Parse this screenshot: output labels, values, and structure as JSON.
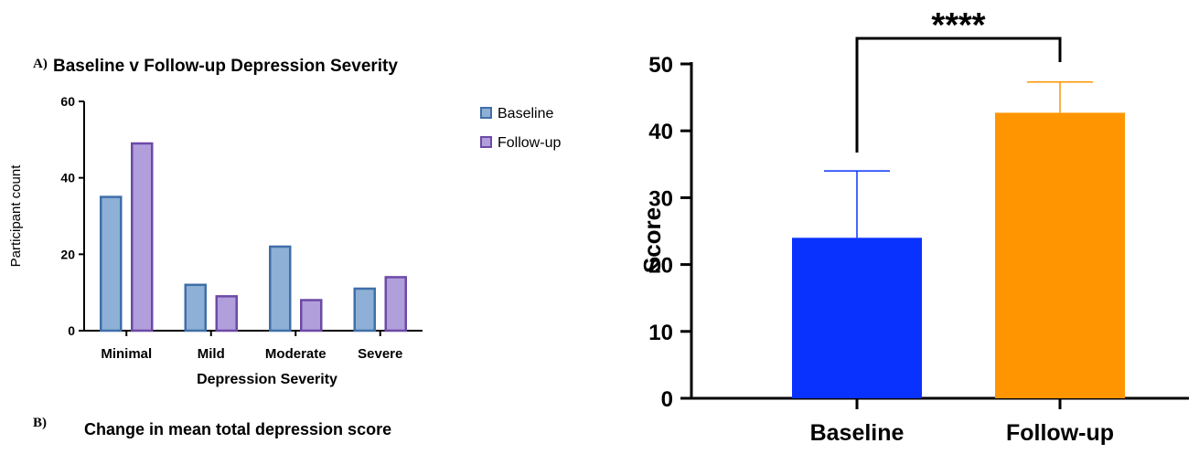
{
  "figure": {
    "panel_a_label": "A)",
    "panel_b_label": "B)",
    "panel_b_title": "Change in mean total depression score"
  },
  "chart_data": [
    {
      "type": "bar",
      "title": "Baseline v Follow-up Depression Severity",
      "xlabel": "Depression Severity",
      "ylabel": "Participant count",
      "categories": [
        "Minimal",
        "Mild",
        "Moderate",
        "Severe"
      ],
      "series": [
        {
          "name": "Baseline",
          "values": [
            35,
            12,
            22,
            11
          ],
          "fill": "#8eb0d6",
          "stroke": "#3f6fa8"
        },
        {
          "name": "Follow-up",
          "values": [
            49,
            9,
            8,
            14
          ],
          "fill": "#b19fdc",
          "stroke": "#6d4aa6"
        }
      ],
      "ylim": [
        0,
        60
      ],
      "yticks": [
        0,
        20,
        40,
        60
      ],
      "legend": "right"
    },
    {
      "type": "bar",
      "title": "",
      "xlabel": "",
      "ylabel": "Score",
      "categories": [
        "Baseline",
        "Follow-up"
      ],
      "values": [
        24,
        42.7
      ],
      "errors": [
        10,
        4.6
      ],
      "colors": [
        "#0a32ff",
        "#ff9500"
      ],
      "ylim": [
        0,
        50
      ],
      "yticks": [
        0,
        10,
        20,
        30,
        40,
        50
      ],
      "significance": "****"
    }
  ]
}
